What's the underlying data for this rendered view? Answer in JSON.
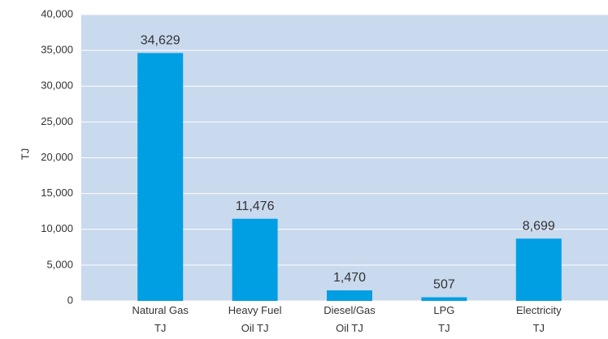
{
  "chart_data": {
    "type": "bar",
    "y_label": "TJ",
    "categories": [
      "Natural Gas\nTJ",
      "Heavy Fuel\nOil TJ",
      "Diesel/Gas\nOil TJ",
      "LPG\nTJ",
      "Electricity\nTJ"
    ],
    "values": [
      34629,
      11476,
      1470,
      507,
      8699
    ],
    "value_labels": [
      "34,629",
      "11,476",
      "1,470",
      "507",
      "8,699"
    ],
    "color": "#009fe3",
    "background": "#c9d9ee",
    "ylim": [
      0,
      40000
    ],
    "yticks": [
      0,
      {
        "value": 5000,
        "label": "5,000"
      },
      {
        "value": 10000,
        "label": "10,000"
      },
      {
        "value": 15000,
        "label": "15,000"
      },
      {
        "value": 20000,
        "label": "20,000"
      },
      {
        "value": 25000,
        "label": "25,000"
      },
      {
        "value": 30000,
        "label": "30,000"
      },
      {
        "value": 35000,
        "label": "35,000"
      },
      {
        "value": 40000,
        "label": "40,000"
      }
    ],
    "grid": true
  }
}
